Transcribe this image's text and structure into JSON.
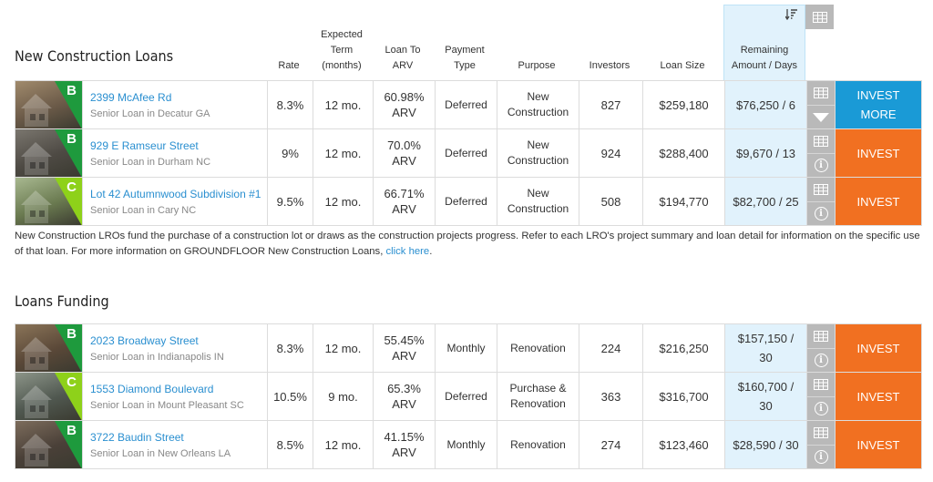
{
  "section1": {
    "title": "New Construction Loans"
  },
  "section2": {
    "title": "Loans Funding"
  },
  "headers": {
    "rate": "Rate",
    "term_l1": "Expected",
    "term_l2": "Term",
    "term_l3": "(months)",
    "ltv_l1": "Loan To",
    "ltv_l2": "ARV",
    "payment_l1": "Payment",
    "payment_l2": "Type",
    "purpose": "Purpose",
    "investors": "Investors",
    "size": "Loan Size",
    "remaining_l1": "Remaining",
    "remaining_l2": "Amount / Days"
  },
  "icons": {
    "sort": "sort-icon",
    "grid": "grid-icon",
    "info": "info-icon",
    "expand": "chevron-down-icon"
  },
  "colors": {
    "invest_orange": "#f17021",
    "invest_more_blue": "#1a9ad6",
    "remaining_bg": "#e1f2fc",
    "link": "#2a8fd0",
    "grade_b": "#1e9a3d",
    "grade_c": "#8ed11a"
  },
  "construction_loans": [
    {
      "grade": "B",
      "address": "2399 McAfee Rd",
      "sub": "Senior Loan in Decatur GA",
      "rate": "8.3%",
      "term": "12 mo.",
      "ltv1": "60.98%",
      "ltv2": "ARV",
      "payment": "Deferred",
      "purpose1": "New",
      "purpose2": "Construction",
      "investors": "827",
      "size": "$259,180",
      "remaining": "$76,250 / 6",
      "action1": "INVEST",
      "action2": "MORE"
    },
    {
      "grade": "B",
      "address": "929 E Ramseur Street",
      "sub": "Senior Loan in Durham NC",
      "rate": "9%",
      "term": "12 mo.",
      "ltv1": "70.0%",
      "ltv2": "ARV",
      "payment": "Deferred",
      "purpose1": "New",
      "purpose2": "Construction",
      "investors": "924",
      "size": "$288,400",
      "remaining": "$9,670 / 13",
      "action1": "INVEST",
      "action2": ""
    },
    {
      "grade": "C",
      "address": "Lot 42 Autumnwood Subdivision #1",
      "sub": "Senior Loan in Cary NC",
      "rate": "9.5%",
      "term": "12 mo.",
      "ltv1": "66.71%",
      "ltv2": "ARV",
      "payment": "Deferred",
      "purpose1": "New",
      "purpose2": "Construction",
      "investors": "508",
      "size": "$194,770",
      "remaining": "$82,700 / 25",
      "action1": "INVEST",
      "action2": ""
    }
  ],
  "note": {
    "text": "New Construction LROs fund the purchase of a construction lot or draws as the construction projects progress. Refer to each LRO's project summary and loan detail for information on the specific use of that loan. For more information on GROUNDFLOOR New Construction Loans, ",
    "link": "click here",
    "end": "."
  },
  "funding_loans": [
    {
      "grade": "B",
      "address": "2023 Broadway Street",
      "sub": "Senior Loan in Indianapolis IN",
      "rate": "8.3%",
      "term": "12 mo.",
      "ltv1": "55.45%",
      "ltv2": "ARV",
      "payment": "Monthly",
      "purpose1": "Renovation",
      "purpose2": "",
      "investors": "224",
      "size": "$216,250",
      "remaining1": "$157,150 /",
      "remaining2": "30",
      "action1": "INVEST"
    },
    {
      "grade": "C",
      "address": "1553 Diamond Boulevard",
      "sub": "Senior Loan in Mount Pleasant SC",
      "rate": "10.5%",
      "term": "9 mo.",
      "ltv1": "65.3%",
      "ltv2": "ARV",
      "payment": "Deferred",
      "purpose1": "Purchase &",
      "purpose2": "Renovation",
      "investors": "363",
      "size": "$316,700",
      "remaining1": "$160,700 /",
      "remaining2": "30",
      "action1": "INVEST"
    },
    {
      "grade": "B",
      "address": "3722 Baudin Street",
      "sub": "Senior Loan in New Orleans LA",
      "rate": "8.5%",
      "term": "12 mo.",
      "ltv1": "41.15%",
      "ltv2": "ARV",
      "payment": "Monthly",
      "purpose1": "Renovation",
      "purpose2": "",
      "investors": "274",
      "size": "$123,460",
      "remaining1": "$28,590 / 30",
      "remaining2": "",
      "action1": "INVEST"
    }
  ]
}
